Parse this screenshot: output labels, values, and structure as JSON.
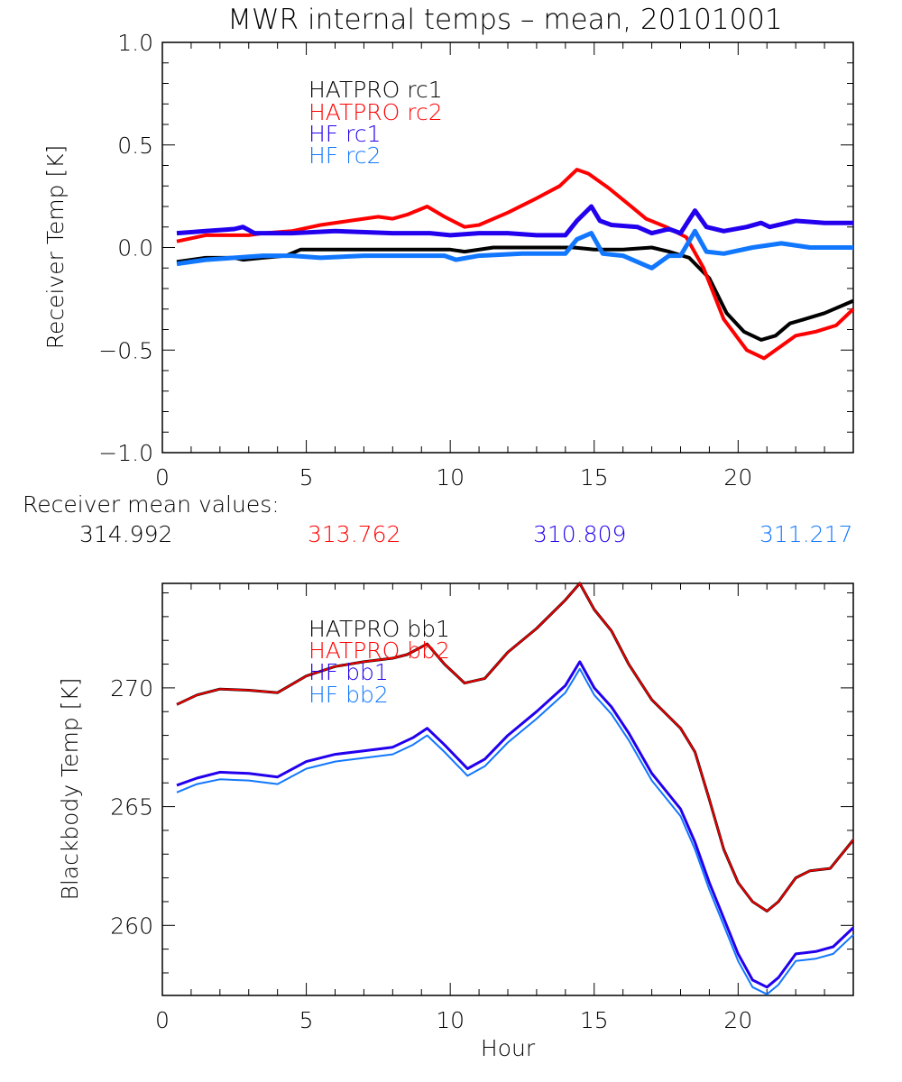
{
  "title": "MWR internal temps – mean, 20101001",
  "receiver_mean": {
    "label": "Receiver mean values:",
    "values": [
      {
        "text": "314.992",
        "color": "#000000"
      },
      {
        "text": "313.762",
        "color": "#ff0000"
      },
      {
        "text": "310.809",
        "color": "#2200ee"
      },
      {
        "text": "311.217",
        "color": "#1177ff"
      }
    ]
  },
  "chart_data": [
    {
      "type": "line",
      "panel": "top",
      "title": "MWR internal temps – mean, 20101001",
      "xlabel": "",
      "ylabel": "Receiver Temp [K]",
      "xlim": [
        0,
        24
      ],
      "ylim": [
        -1.0,
        1.0
      ],
      "xticks": [
        0,
        5,
        10,
        15,
        20
      ],
      "xtick_labels": [
        "0",
        "5",
        "10",
        "15",
        "20"
      ],
      "yticks": [
        -1.0,
        -0.5,
        0.0,
        0.5,
        1.0
      ],
      "ytick_labels": [
        "−1.0",
        "−0.5",
        "0.0",
        "0.5",
        "1.0"
      ],
      "grid": false,
      "legend_position": "top-center",
      "series": [
        {
          "name": "HATPRO rc1",
          "color": "#000000",
          "x": [
            0.5,
            1.5,
            2.5,
            2.8,
            3.5,
            4.3,
            4.8,
            6,
            8,
            10,
            10.5,
            11.5,
            13,
            14.3,
            15,
            16,
            17,
            17.6,
            18.3,
            19,
            19.6,
            20.2,
            20.8,
            21.3,
            21.8,
            22.3,
            23,
            24
          ],
          "y": [
            -0.07,
            -0.05,
            -0.05,
            -0.06,
            -0.05,
            -0.04,
            -0.01,
            -0.01,
            -0.01,
            -0.01,
            -0.02,
            0.0,
            0.0,
            0.0,
            -0.01,
            -0.01,
            0.0,
            -0.02,
            -0.05,
            -0.15,
            -0.32,
            -0.41,
            -0.45,
            -0.43,
            -0.37,
            -0.35,
            -0.32,
            -0.26
          ]
        },
        {
          "name": "HATPRO rc2",
          "color": "#ff0000",
          "x": [
            0.5,
            1.5,
            2.5,
            3.0,
            3.5,
            4.5,
            5.5,
            6.5,
            7.5,
            8.0,
            8.5,
            9.2,
            9.8,
            10.5,
            11.0,
            12,
            13,
            13.8,
            14.4,
            14.8,
            15.5,
            16.2,
            16.8,
            17.5,
            18.2,
            18.8,
            19.5,
            20.3,
            20.9,
            21.4,
            22,
            22.7,
            23.4,
            24
          ],
          "y": [
            0.03,
            0.06,
            0.06,
            0.06,
            0.07,
            0.08,
            0.11,
            0.13,
            0.15,
            0.14,
            0.16,
            0.2,
            0.15,
            0.1,
            0.11,
            0.17,
            0.24,
            0.3,
            0.38,
            0.36,
            0.29,
            0.21,
            0.14,
            0.1,
            0.05,
            -0.1,
            -0.35,
            -0.5,
            -0.54,
            -0.49,
            -0.43,
            -0.41,
            -0.38,
            -0.3
          ]
        },
        {
          "name": "HF rc1",
          "color": "#2200ee",
          "x": [
            0.5,
            1.5,
            2.5,
            2.8,
            3.2,
            4.5,
            6,
            8,
            9.3,
            10,
            11,
            12,
            13,
            14.0,
            14.4,
            14.9,
            15.2,
            15.6,
            16.5,
            17,
            17.6,
            18.0,
            18.5,
            18.9,
            19.5,
            20.3,
            20.8,
            21.1,
            22,
            23,
            24
          ],
          "y": [
            0.07,
            0.08,
            0.09,
            0.1,
            0.07,
            0.07,
            0.08,
            0.07,
            0.07,
            0.06,
            0.07,
            0.07,
            0.06,
            0.06,
            0.13,
            0.2,
            0.13,
            0.11,
            0.1,
            0.07,
            0.09,
            0.07,
            0.18,
            0.1,
            0.08,
            0.1,
            0.12,
            0.1,
            0.13,
            0.12,
            0.12
          ]
        },
        {
          "name": "HF rc2",
          "color": "#1177ff",
          "x": [
            0.5,
            1.5,
            2.5,
            3.5,
            4.5,
            5.5,
            7,
            8.5,
            9.8,
            10.2,
            11,
            12.5,
            14.0,
            14.4,
            14.9,
            15.3,
            16,
            16.5,
            17.0,
            17.6,
            18.0,
            18.5,
            18.9,
            19.5,
            20.5,
            21.5,
            22.5,
            23.5,
            24
          ],
          "y": [
            -0.08,
            -0.06,
            -0.05,
            -0.04,
            -0.04,
            -0.05,
            -0.04,
            -0.04,
            -0.04,
            -0.06,
            -0.04,
            -0.03,
            -0.03,
            0.04,
            0.07,
            -0.03,
            -0.04,
            -0.07,
            -0.1,
            -0.04,
            -0.04,
            0.08,
            -0.02,
            -0.03,
            0.0,
            0.02,
            0.0,
            0.0,
            0.0
          ]
        }
      ]
    },
    {
      "type": "line",
      "panel": "bottom",
      "title": "",
      "xlabel": "Hour",
      "ylabel": "Blackbody Temp [K]",
      "xlim": [
        0,
        24
      ],
      "ylim": [
        257.05,
        274.4
      ],
      "xticks": [
        0,
        5,
        10,
        15,
        20
      ],
      "xtick_labels": [
        "0",
        "5",
        "10",
        "15",
        "20"
      ],
      "yticks": [
        260,
        265,
        270
      ],
      "ytick_labels": [
        "260",
        "265",
        "270"
      ],
      "grid": false,
      "legend_position": "top-center",
      "series": [
        {
          "name": "HATPRO bb1",
          "color": "#000000",
          "x": [
            0.5,
            1.2,
            2,
            3,
            4,
            5,
            6,
            7,
            8,
            8.5,
            9.2,
            9.8,
            10.5,
            11.2,
            12,
            13,
            14,
            14.5,
            15,
            15.6,
            16.2,
            17,
            18,
            18.5,
            19,
            19.5,
            20.0,
            20.5,
            21.0,
            21.4,
            22,
            22.5,
            23.2,
            24
          ],
          "y": [
            269.3,
            269.7,
            269.95,
            269.9,
            269.8,
            270.5,
            270.9,
            271.1,
            271.25,
            271.4,
            271.85,
            271.0,
            270.2,
            270.4,
            271.5,
            272.5,
            273.7,
            274.4,
            273.3,
            272.4,
            271.0,
            269.5,
            268.3,
            267.3,
            265.3,
            263.2,
            261.8,
            261.0,
            260.6,
            261.0,
            262.0,
            262.3,
            262.4,
            263.6
          ]
        },
        {
          "name": "HATPRO bb2",
          "color": "#ee0000",
          "x": [
            0.5,
            1.2,
            2,
            3,
            4,
            5,
            6,
            7,
            8,
            8.5,
            9.2,
            9.8,
            10.5,
            11.2,
            12,
            13,
            14,
            14.5,
            15,
            15.6,
            16.2,
            17,
            18,
            18.5,
            19,
            19.5,
            20.0,
            20.5,
            21.0,
            21.4,
            22,
            22.5,
            23.2,
            24
          ],
          "y": [
            269.3,
            269.7,
            269.95,
            269.9,
            269.8,
            270.5,
            270.9,
            271.1,
            271.25,
            271.4,
            271.85,
            271.0,
            270.2,
            270.4,
            271.5,
            272.5,
            273.7,
            274.4,
            273.3,
            272.4,
            271.0,
            269.5,
            268.3,
            267.3,
            265.3,
            263.2,
            261.8,
            261.0,
            260.6,
            261.0,
            262.0,
            262.3,
            262.4,
            263.6
          ]
        },
        {
          "name": "HF bb1",
          "color": "#2200ee",
          "x": [
            0.5,
            1.2,
            2,
            3,
            4,
            5,
            6,
            7,
            8,
            8.7,
            9.2,
            9.8,
            10.6,
            11.2,
            12,
            13,
            14,
            14.5,
            15,
            15.6,
            16.2,
            17,
            18,
            18.5,
            19,
            19.5,
            20.0,
            20.5,
            21.0,
            21.4,
            22,
            22.7,
            23.3,
            24
          ],
          "y": [
            265.9,
            266.2,
            266.45,
            266.4,
            266.25,
            266.9,
            267.2,
            267.35,
            267.5,
            267.9,
            268.3,
            267.6,
            266.6,
            267.0,
            268.0,
            269.0,
            270.1,
            271.1,
            270.0,
            269.2,
            268.1,
            266.4,
            264.9,
            263.5,
            261.8,
            260.3,
            258.8,
            257.7,
            257.4,
            257.8,
            258.8,
            258.9,
            259.1,
            259.9
          ]
        },
        {
          "name": "HF bb2",
          "color": "#1177ff",
          "x": [
            0.5,
            1.2,
            2,
            3,
            4,
            5,
            6,
            7,
            8,
            8.7,
            9.2,
            9.8,
            10.6,
            11.2,
            12,
            13,
            14,
            14.5,
            15,
            15.6,
            16.2,
            17,
            18,
            18.5,
            19,
            19.5,
            20.0,
            20.5,
            21.0,
            21.4,
            22,
            22.7,
            23.3,
            24
          ],
          "y": [
            265.6,
            265.95,
            266.15,
            266.1,
            265.95,
            266.6,
            266.9,
            267.05,
            267.2,
            267.6,
            268.0,
            267.3,
            266.3,
            266.7,
            267.7,
            268.7,
            269.8,
            270.8,
            269.7,
            268.9,
            267.8,
            266.1,
            264.6,
            263.2,
            261.5,
            260.0,
            258.5,
            257.4,
            257.1,
            257.5,
            258.5,
            258.6,
            258.8,
            259.6
          ]
        }
      ]
    }
  ]
}
